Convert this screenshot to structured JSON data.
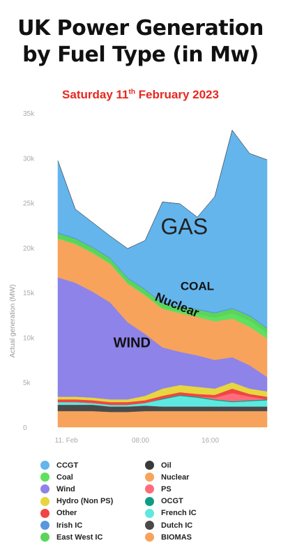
{
  "header": {
    "title_line1": "UK Power Generation",
    "title_line2": "by Fuel Type (in Mw)",
    "subtitle_pre": "Saturday 11",
    "subtitle_sup": "th",
    "subtitle_post": " February 2023"
  },
  "chart_data": {
    "type": "area",
    "stacked": true,
    "ylabel": "Actual generation (MW)",
    "ylim": [
      0,
      35000
    ],
    "yticks": [
      {
        "v": 0,
        "label": "0"
      },
      {
        "v": 5000,
        "label": "5k"
      },
      {
        "v": 10000,
        "label": "10k"
      },
      {
        "v": 15000,
        "label": "15k"
      },
      {
        "v": 20000,
        "label": "20k"
      },
      {
        "v": 25000,
        "label": "25k"
      },
      {
        "v": 30000,
        "label": "30k"
      },
      {
        "v": 35000,
        "label": "35k"
      }
    ],
    "x": [
      0,
      2,
      4,
      6,
      8,
      10,
      12,
      14,
      16,
      18,
      20,
      22,
      24
    ],
    "xlim": [
      0,
      24
    ],
    "xticks": [
      {
        "v": 0.5,
        "label": "11. Feb"
      },
      {
        "v": 9,
        "label": "08:00"
      },
      {
        "v": 17,
        "label": "16:00"
      }
    ],
    "series": [
      {
        "name": "BIOMAS",
        "color": "#f7a35c",
        "values": [
          1800,
          1800,
          1800,
          1700,
          1700,
          1800,
          1800,
          1800,
          1800,
          1800,
          1800,
          1800,
          1800
        ]
      },
      {
        "name": "Dutch IC",
        "color": "#4a4a4a",
        "values": [
          700,
          700,
          700,
          600,
          600,
          600,
          500,
          500,
          500,
          500,
          500,
          500,
          500
        ]
      },
      {
        "name": "French IC",
        "color": "#5ee8e0",
        "values": [
          300,
          300,
          200,
          200,
          200,
          300,
          800,
          1200,
          1000,
          700,
          500,
          600,
          700
        ]
      },
      {
        "name": "OCGT",
        "color": "#0e9c85",
        "values": [
          0,
          0,
          0,
          0,
          0,
          0,
          100,
          100,
          100,
          100,
          100,
          100,
          100
        ]
      },
      {
        "name": "PS",
        "color": "#ff6b7a",
        "values": [
          0,
          0,
          0,
          0,
          0,
          0,
          0,
          0,
          0,
          200,
          900,
          400,
          0
        ]
      },
      {
        "name": "Other",
        "color": "#f04545",
        "values": [
          300,
          300,
          300,
          300,
          300,
          300,
          300,
          300,
          300,
          300,
          500,
          300,
          300
        ]
      },
      {
        "name": "Hydro (Non PS)",
        "color": "#e6d640",
        "values": [
          300,
          300,
          300,
          300,
          300,
          500,
          800,
          800,
          800,
          700,
          700,
          600,
          600
        ]
      },
      {
        "name": "Wind",
        "color": "#8e83e8",
        "values": [
          13300,
          12700,
          11800,
          10800,
          8600,
          6900,
          4600,
          3700,
          3500,
          3200,
          2800,
          2600,
          1600
        ]
      },
      {
        "name": "Nuclear",
        "color": "#f7a35c",
        "values": [
          4300,
          4300,
          4300,
          4300,
          4300,
          4300,
          4300,
          4300,
          4300,
          4300,
          4300,
          4300,
          4300
        ]
      },
      {
        "name": "Coal",
        "color": "#5fe05f",
        "values": [
          100,
          100,
          100,
          100,
          100,
          100,
          100,
          200,
          300,
          400,
          600,
          700,
          600
        ]
      },
      {
        "name": "East West IC",
        "color": "#5ad55a",
        "values": [
          500,
          500,
          500,
          500,
          500,
          500,
          500,
          500,
          500,
          500,
          500,
          500,
          500
        ]
      },
      {
        "name": "Irish IC",
        "color": "#5a95e0",
        "values": [
          100,
          100,
          100,
          100,
          100,
          100,
          100,
          100,
          100,
          100,
          100,
          100,
          100
        ]
      },
      {
        "name": "CCGT",
        "color": "#64b5ec",
        "values": [
          8000,
          3200,
          2700,
          2400,
          3200,
          5400,
          11200,
          11400,
          10200,
          12900,
          19800,
          18000,
          18700
        ]
      },
      {
        "name": "Oil",
        "color": "#3a3a3a",
        "values": [
          0,
          0,
          0,
          0,
          0,
          0,
          0,
          0,
          0,
          0,
          0,
          0,
          0
        ]
      }
    ],
    "annotations": [
      {
        "text": "GAS",
        "x": 14.5,
        "y": 21500
      },
      {
        "text": "COAL",
        "x": 16,
        "y": 15300
      },
      {
        "text": "Nuclear",
        "x": 13.5,
        "y": 13200
      },
      {
        "text": "WIND",
        "x": 8.5,
        "y": 8900
      }
    ],
    "legend": {
      "placement": "bottom",
      "items": [
        {
          "label": "CCGT",
          "color": "#64b5ec"
        },
        {
          "label": "Coal",
          "color": "#5fe05f"
        },
        {
          "label": "Wind",
          "color": "#8e83e8"
        },
        {
          "label": "Hydro (Non PS)",
          "color": "#e6d640"
        },
        {
          "label": "Other",
          "color": "#f04545"
        },
        {
          "label": "Irish IC",
          "color": "#5a95e0"
        },
        {
          "label": "East West IC",
          "color": "#5ad55a"
        },
        {
          "label": "Oil",
          "color": "#3a3a3a"
        },
        {
          "label": "Nuclear",
          "color": "#f7a35c"
        },
        {
          "label": "PS",
          "color": "#ff6b7a"
        },
        {
          "label": "OCGT",
          "color": "#0e9c85"
        },
        {
          "label": "French IC",
          "color": "#5ee8e0"
        },
        {
          "label": "Dutch IC",
          "color": "#4a4a4a"
        },
        {
          "label": "BIOMAS",
          "color": "#f7a35c"
        }
      ]
    },
    "grid": false
  }
}
